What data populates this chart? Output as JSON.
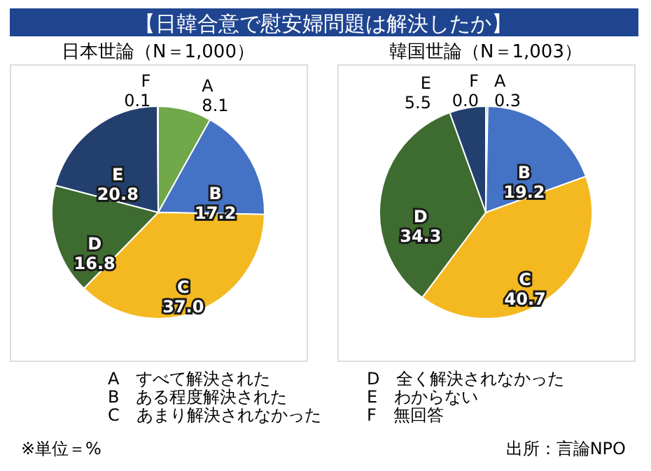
{
  "chart_data": [
    {
      "type": "pie",
      "title": "【日韓合意で慰安婦問題は解決したか】",
      "subtitle": "日本世論（N＝1,000）",
      "categories": [
        "A",
        "B",
        "C",
        "D",
        "E",
        "F"
      ],
      "values": [
        8.1,
        17.2,
        37.0,
        16.8,
        20.8,
        0.1
      ],
      "colors": [
        "#70a84a",
        "#4472c4",
        "#f4b920",
        "#3e6b30",
        "#223f6e",
        "#a5a5a5"
      ],
      "value_labels": [
        "8.1",
        "17.2",
        "37.0",
        "16.8",
        "20.8",
        "0.1"
      ],
      "annotations": [
        "A　すべて解決された",
        "B　ある程度解決された",
        "C　あまり解決されなかった",
        "D　全く解決されなかった",
        "E　わからない",
        "F　無回答",
        "※単位＝%",
        "出所：言論NPO"
      ]
    },
    {
      "type": "pie",
      "subtitle": "韓国世論（N＝1,003）",
      "categories": [
        "A",
        "B",
        "C",
        "D",
        "E",
        "F"
      ],
      "values": [
        0.3,
        19.2,
        40.7,
        34.3,
        5.5,
        0.0
      ],
      "colors": [
        "#70a84a",
        "#4472c4",
        "#f4b920",
        "#3e6b30",
        "#223f6e",
        "#a5a5a5"
      ],
      "value_labels": [
        "0.3",
        "19.2",
        "40.7",
        "34.3",
        "5.5",
        "0.0"
      ]
    }
  ]
}
